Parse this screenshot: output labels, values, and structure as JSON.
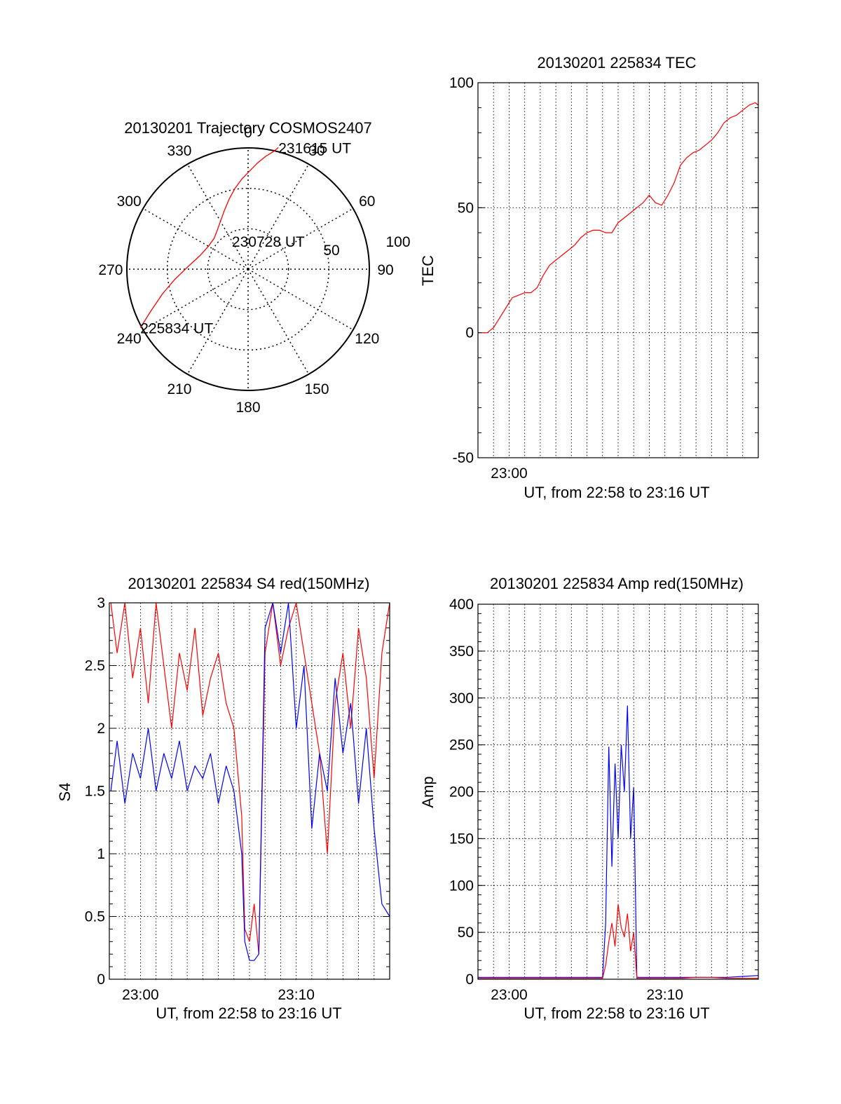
{
  "colors": {
    "red": "#ff0000",
    "blue": "#0000ff",
    "axis": "#000000",
    "grid": "#000000"
  },
  "chart_data": [
    {
      "id": "trajectory",
      "type": "polar",
      "title": "20130201 Trajectory COSMOS2407",
      "azimuth_labels": [
        "0",
        "30",
        "60",
        "90",
        "120",
        "150",
        "180",
        "210",
        "240",
        "270",
        "300",
        "330"
      ],
      "elevation_ticks": [
        {
          "elevation": 100,
          "label": "100"
        },
        {
          "elevation": 50,
          "label": "50"
        }
      ],
      "zenith_angle_max": 90,
      "series": [
        {
          "color": "#ff0000",
          "points": [
            [
              241.5,
              91
            ],
            [
              247,
              78
            ],
            [
              254,
              66
            ],
            [
              262,
              55
            ],
            [
              272,
              45
            ],
            [
              286,
              37
            ],
            [
              300,
              34
            ],
            [
              312,
              34
            ],
            [
              322,
              37
            ],
            [
              330,
              41
            ],
            [
              338,
              47
            ],
            [
              345,
              54
            ],
            [
              351,
              61
            ],
            [
              356,
              67
            ],
            [
              1,
              73
            ],
            [
              5,
              79
            ],
            [
              9,
              85
            ],
            [
              12,
              89
            ],
            [
              14,
              93
            ]
          ]
        }
      ],
      "annotations": [
        {
          "text": "231615 UT",
          "az": 14,
          "za": 93
        },
        {
          "text": "230728 UT",
          "az": 330,
          "za": 24
        },
        {
          "text": "225834 UT",
          "az": 241.5,
          "za": 91
        }
      ]
    },
    {
      "id": "tec",
      "type": "line",
      "title": "20130201 225834 TEC",
      "xlabel": "UT, from 22:58 to 23:16 UT",
      "ylabel": "TEC",
      "xlim": [
        0,
        18
      ],
      "ylim": [
        -50,
        100
      ],
      "yticks": [
        -50,
        0,
        50,
        100
      ],
      "xticks": [
        {
          "value": 2,
          "label": "23:00"
        }
      ],
      "grid": true,
      "series": [
        {
          "color": "#ff0000",
          "x": [
            0.2,
            0.6,
            1.0,
            1.4,
            1.8,
            2.2,
            2.6,
            3.0,
            3.4,
            3.8,
            4.2,
            4.6,
            5.0,
            5.4,
            5.8,
            6.2,
            6.6,
            7.0,
            7.4,
            7.8,
            8.2,
            8.6,
            9.0,
            9.4,
            9.8,
            10.2,
            10.6,
            11.0,
            11.4,
            11.8,
            12.2,
            12.6,
            13.0,
            13.4,
            13.8,
            14.2,
            14.6,
            15.0,
            15.4,
            15.8,
            16.2,
            16.6,
            17.0,
            17.4,
            17.8,
            18.0
          ],
          "y": [
            0,
            0,
            2,
            6,
            10,
            14,
            15,
            16,
            16,
            18,
            23,
            27,
            29,
            31,
            33,
            35,
            38,
            40,
            41,
            41,
            40,
            40,
            44,
            46,
            48,
            50,
            52,
            55,
            52,
            51,
            55,
            60,
            67,
            70,
            72,
            73,
            75,
            77,
            80,
            84,
            86,
            87,
            89,
            91,
            92,
            91
          ]
        }
      ]
    },
    {
      "id": "s4",
      "type": "line",
      "title": "20130201 225834 S4 red(150MHz)",
      "xlabel": "UT, from 22:58 to 23:16 UT",
      "ylabel": "S4",
      "xlim": [
        0,
        18
      ],
      "ylim": [
        0,
        3
      ],
      "yticks": [
        0,
        0.5,
        1,
        1.5,
        2,
        2.5,
        3
      ],
      "ytick_labels": [
        "0",
        "0.5",
        "1",
        "1.5",
        "2",
        "2.5",
        "3"
      ],
      "xticks": [
        {
          "value": 2,
          "label": "23:00"
        },
        {
          "value": 12,
          "label": "23:10"
        }
      ],
      "grid": true,
      "series": [
        {
          "color": "#ff0000",
          "x": [
            0.1,
            0.5,
            1.0,
            1.5,
            2.0,
            2.5,
            3.0,
            3.5,
            4.0,
            4.5,
            5.0,
            5.5,
            6.0,
            6.5,
            7.0,
            7.5,
            8.0,
            8.5,
            8.7,
            9.0,
            9.3,
            9.6,
            10.0,
            10.5,
            11.0,
            11.5,
            12.0,
            12.5,
            13.0,
            13.5,
            14.0,
            14.5,
            15.0,
            15.5,
            16.0,
            16.5,
            17.0,
            17.5,
            18.0
          ],
          "y": [
            3.0,
            2.6,
            3.0,
            2.4,
            2.8,
            2.2,
            3.0,
            2.5,
            2.0,
            2.6,
            2.3,
            2.8,
            2.1,
            2.4,
            2.6,
            2.2,
            2.0,
            1.3,
            0.4,
            0.3,
            0.6,
            0.2,
            2.6,
            3.0,
            2.5,
            2.8,
            3.0,
            2.6,
            2.2,
            1.8,
            1.0,
            2.2,
            2.6,
            2.0,
            2.8,
            2.4,
            1.6,
            2.6,
            3.0
          ]
        },
        {
          "color": "#0000ff",
          "x": [
            0.1,
            0.5,
            1.0,
            1.5,
            2.0,
            2.5,
            3.0,
            3.5,
            4.0,
            4.5,
            5.0,
            5.5,
            6.0,
            6.5,
            7.0,
            7.5,
            8.0,
            8.5,
            8.7,
            9.0,
            9.3,
            9.6,
            10.0,
            10.5,
            11.0,
            11.5,
            12.0,
            12.5,
            13.0,
            13.5,
            14.0,
            14.5,
            15.0,
            15.5,
            16.0,
            16.5,
            17.0,
            17.5,
            18.0
          ],
          "y": [
            1.5,
            1.9,
            1.4,
            1.8,
            1.6,
            2.0,
            1.5,
            1.8,
            1.6,
            1.9,
            1.5,
            1.7,
            1.6,
            1.8,
            1.4,
            1.7,
            1.5,
            1.0,
            0.3,
            0.15,
            0.15,
            0.2,
            2.8,
            3.0,
            2.6,
            3.0,
            2.0,
            2.5,
            1.2,
            1.8,
            1.5,
            2.4,
            1.8,
            2.2,
            1.4,
            2.0,
            1.2,
            0.6,
            0.5
          ]
        }
      ]
    },
    {
      "id": "amp",
      "type": "line",
      "title": "20130201 225834 Amp red(150MHz)",
      "xlabel": "UT, from 22:58 to 23:16 UT",
      "ylabel": "Amp",
      "xlim": [
        0,
        18
      ],
      "ylim": [
        0,
        400
      ],
      "yticks": [
        0,
        50,
        100,
        150,
        200,
        250,
        300,
        350,
        400
      ],
      "xticks": [
        {
          "value": 2,
          "label": "23:00"
        },
        {
          "value": 12,
          "label": "23:10"
        }
      ],
      "grid": true,
      "series": [
        {
          "color": "#0000ff",
          "x": [
            0,
            1,
            2,
            3,
            4,
            5,
            6,
            7,
            8,
            8.2,
            8.4,
            8.6,
            8.8,
            9.0,
            9.2,
            9.4,
            9.6,
            9.8,
            10.0,
            10.2,
            11,
            12,
            13,
            14,
            15,
            16,
            17,
            18
          ],
          "y": [
            2,
            2,
            2,
            2,
            2,
            2,
            2,
            2,
            2,
            60,
            248,
            120,
            230,
            150,
            250,
            200,
            292,
            150,
            205,
            2,
            2,
            2,
            2,
            2,
            2,
            2,
            3,
            4
          ]
        },
        {
          "color": "#ff0000",
          "x": [
            0,
            1,
            2,
            3,
            4,
            5,
            6,
            7,
            8,
            8.2,
            8.4,
            8.6,
            8.8,
            9.0,
            9.2,
            9.4,
            9.6,
            9.8,
            10.0,
            10.2,
            11,
            12,
            13,
            14,
            15,
            16,
            17,
            18
          ],
          "y": [
            1,
            1,
            1,
            1,
            1,
            1,
            1,
            1,
            1,
            15,
            40,
            60,
            35,
            80,
            55,
            45,
            70,
            30,
            50,
            1,
            1,
            1,
            1,
            2,
            2,
            1,
            1,
            1
          ]
        }
      ]
    }
  ]
}
